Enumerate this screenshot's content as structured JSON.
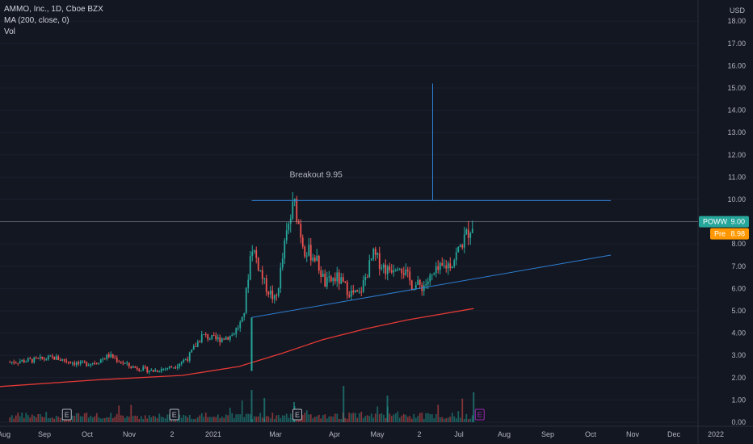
{
  "legend": {
    "symbol_line": "AMMO, Inc., 1D, Cboe BZX",
    "ma_line": "MA (200, close, 0)",
    "vol_line": "Vol"
  },
  "currency": "USD",
  "badges": {
    "ticker": "POWW",
    "last_price": "9.00",
    "pre_label": "Pre",
    "pre_price": "8.98"
  },
  "annotation": "Breakout 9.95",
  "earnings_marker": "E",
  "colors": {
    "background": "#131722",
    "up": "#26a69a",
    "down": "#ef5350",
    "ma": "#e53935",
    "trendline": "#2e7dd1",
    "annotation": "#f05656",
    "last_price_bg": "#26a69a",
    "pre_bg": "#ff9800",
    "earnings_past": "#b2b5be",
    "earnings_next": "#9c27b0"
  },
  "chart_data": {
    "type": "candlestick",
    "y_axis": {
      "min": 0,
      "max": 18,
      "ticks": [
        "0.00",
        "1.00",
        "2.00",
        "3.00",
        "4.00",
        "5.00",
        "6.00",
        "7.00",
        "8.00",
        "9.00",
        "10.00",
        "11.00",
        "12.00",
        "13.00",
        "14.00",
        "15.00",
        "16.00",
        "17.00",
        "18.00"
      ]
    },
    "x_axis": {
      "labels": [
        "Aug",
        "Sep",
        "Oct",
        "Nov",
        "2",
        "2021",
        "Mar",
        "Apr",
        "May",
        "2",
        "Jul",
        "Aug",
        "Sep",
        "Oct",
        "Nov",
        "Dec",
        "2022"
      ]
    },
    "price_path": [
      {
        "date": "2020-08-01",
        "price": 2.7
      },
      {
        "date": "2020-08-20",
        "price": 2.8
      },
      {
        "date": "2020-09-01",
        "price": 2.9
      },
      {
        "date": "2020-09-20",
        "price": 2.6
      },
      {
        "date": "2020-10-01",
        "price": 2.7
      },
      {
        "date": "2020-10-10",
        "price": 3.0
      },
      {
        "date": "2020-10-25",
        "price": 2.5
      },
      {
        "date": "2020-11-10",
        "price": 2.3
      },
      {
        "date": "2020-11-25",
        "price": 2.5
      },
      {
        "date": "2020-12-05",
        "price": 2.9
      },
      {
        "date": "2020-12-15",
        "price": 3.9
      },
      {
        "date": "2020-12-25",
        "price": 3.7
      },
      {
        "date": "2021-01-05",
        "price": 3.9
      },
      {
        "date": "2021-01-13",
        "price": 4.6
      },
      {
        "date": "2021-01-19",
        "price": 8.0
      },
      {
        "date": "2021-01-28",
        "price": 6.2
      },
      {
        "date": "2021-02-05",
        "price": 5.4
      },
      {
        "date": "2021-02-12",
        "price": 8.2
      },
      {
        "date": "2021-02-18",
        "price": 9.9
      },
      {
        "date": "2021-02-25",
        "price": 7.8
      },
      {
        "date": "2021-03-05",
        "price": 7.4
      },
      {
        "date": "2021-03-12",
        "price": 6.2
      },
      {
        "date": "2021-03-20",
        "price": 6.5
      },
      {
        "date": "2021-03-30",
        "price": 5.8
      },
      {
        "date": "2021-04-05",
        "price": 5.7
      },
      {
        "date": "2021-04-15",
        "price": 7.5
      },
      {
        "date": "2021-04-25",
        "price": 6.8
      },
      {
        "date": "2021-05-03",
        "price": 7.2
      },
      {
        "date": "2021-05-12",
        "price": 6.2
      },
      {
        "date": "2021-05-20",
        "price": 6.1
      },
      {
        "date": "2021-05-31",
        "price": 6.8
      },
      {
        "date": "2021-06-10",
        "price": 7.2
      },
      {
        "date": "2021-06-18",
        "price": 8.2
      },
      {
        "date": "2021-06-25",
        "price": 9.0
      }
    ],
    "ma200_path": [
      {
        "date": "2020-07-25",
        "value": 1.6
      },
      {
        "date": "2020-10-01",
        "value": 1.9
      },
      {
        "date": "2020-12-01",
        "value": 2.1
      },
      {
        "date": "2021-01-10",
        "value": 2.5
      },
      {
        "date": "2021-02-10",
        "value": 3.1
      },
      {
        "date": "2021-03-10",
        "value": 3.7
      },
      {
        "date": "2021-04-10",
        "value": 4.2
      },
      {
        "date": "2021-05-10",
        "value": 4.6
      },
      {
        "date": "2021-06-25",
        "value": 5.1
      }
    ],
    "horizontal_line": {
      "value": 9.95,
      "from": "2021-01-19",
      "to": "2021-09-30"
    },
    "measured_move": {
      "x": "2021-05-27",
      "from": 9.95,
      "to": 15.2
    },
    "trendline": {
      "from": {
        "date": "2021-01-19",
        "value": 4.7
      },
      "to": {
        "date": "2021-09-30",
        "value": 7.5
      }
    },
    "pole": {
      "x": "2021-01-19",
      "from": 2.3,
      "to": 4.7
    },
    "last_price": 9.0,
    "pre_market_price": 8.98,
    "earnings_dates": [
      "2020-09-10",
      "2020-11-25",
      "2021-02-20",
      "2021-06-29"
    ],
    "volume_axis_max": 1.5
  }
}
